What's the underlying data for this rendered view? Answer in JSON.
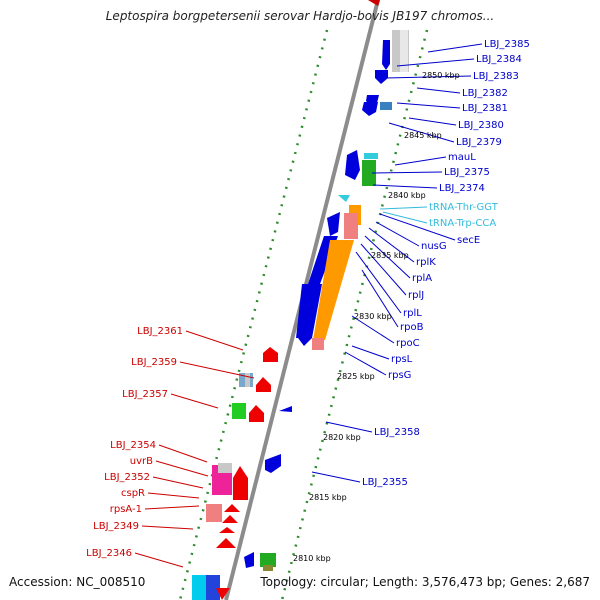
{
  "title": "Leptospira borgpetersenii serovar Hardjo-bovis JB197 chromos...",
  "footer": {
    "accession": "Accession: NC_008510",
    "stats": "Topology: circular; Length: 3,576,473 bp; Genes: 2,687"
  },
  "colors": {
    "backbone": "#8c8c8c",
    "tick": "#2e8b2e",
    "label_forward": "#0000cc",
    "label_reverse": "#cc0000",
    "label_trna": "#33bbdd"
  },
  "kbp_marks": [
    "2850 kbp",
    "2845 kbp",
    "2840 kbp",
    "2835 kbp",
    "2830 kbp",
    "2825 kbp",
    "2820 kbp",
    "2815 kbp",
    "2810 kbp"
  ],
  "forward_labels": [
    "LBJ_2385",
    "LBJ_2384",
    "LBJ_2383",
    "LBJ_2382",
    "LBJ_2381",
    "LBJ_2380",
    "LBJ_2379",
    "mauL",
    "LBJ_2375",
    "LBJ_2374",
    "tRNA-Thr-GGT",
    "tRNA-Trp-CCA",
    "secE",
    "nusG",
    "rplK",
    "rplA",
    "rplJ",
    "rplL",
    "rpoB",
    "rpoC",
    "rpsL",
    "rpsG",
    "LBJ_2358",
    "LBJ_2355"
  ],
  "reverse_labels": [
    "LBJ_2361",
    "LBJ_2359",
    "LBJ_2357",
    "LBJ_2354",
    "uvrB",
    "LBJ_2352",
    "cspR",
    "rpsA-1",
    "LBJ_2349",
    "LBJ_2346"
  ]
}
